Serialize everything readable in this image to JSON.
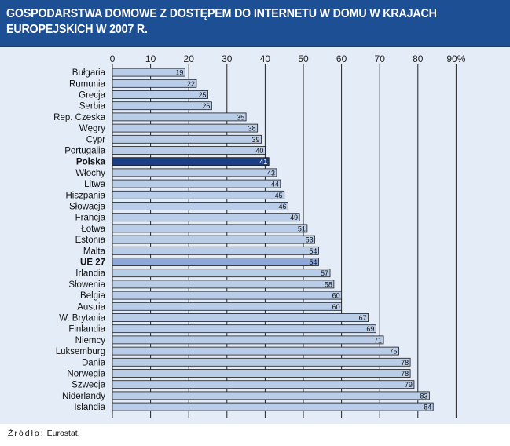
{
  "header": {
    "title": "GOSPODARSTWA DOMOWE Z DOSTĘPEM DO INTERNETU W DOMU W KRAJACH EUROPEJSKICH W 2007 R."
  },
  "source": {
    "label": "Źródło:",
    "text": "Eurostat."
  },
  "colors": {
    "header_bg": "#1d4f94",
    "panel_bg": "#e4ecf7",
    "bar": "#b9cde8",
    "highlight_bar": "#1a3f86",
    "eu_bar": "#8da7d8"
  },
  "chart_data": {
    "type": "bar",
    "orientation": "horizontal",
    "title": "GOSPODARSTWA DOMOWE Z DOSTĘPEM DO INTERNETU W DOMU W KRAJACH EUROPEJSKICH W 2007 R.",
    "xlim": [
      0,
      90
    ],
    "tick_labels": [
      "0",
      "10",
      "20",
      "30",
      "40",
      "50",
      "60",
      "70",
      "80",
      "90%"
    ],
    "grid": "vertical",
    "categories": [
      "Bułgaria",
      "Rumunia",
      "Grecja",
      "Serbia",
      "Rep. Czeska",
      "Węgry",
      "Cypr",
      "Portugalia",
      "Polska",
      "Włochy",
      "Litwa",
      "Hiszpania",
      "Słowacja",
      "Francja",
      "Łotwa",
      "Estonia",
      "Malta",
      "UE 27",
      "Irlandia",
      "Słowenia",
      "Belgia",
      "Austria",
      "W. Brytania",
      "Finlandia",
      "Niemcy",
      "Luksemburg",
      "Dania",
      "Norwegia",
      "Szwecja",
      "Niderlandy",
      "Islandia"
    ],
    "values": [
      19,
      22,
      25,
      26,
      35,
      38,
      39,
      40,
      41,
      43,
      44,
      45,
      46,
      49,
      51,
      53,
      54,
      54,
      57,
      58,
      60,
      60,
      67,
      69,
      71,
      75,
      78,
      78,
      79,
      83,
      84
    ],
    "highlight": [
      "Polska",
      "UE 27"
    ]
  }
}
